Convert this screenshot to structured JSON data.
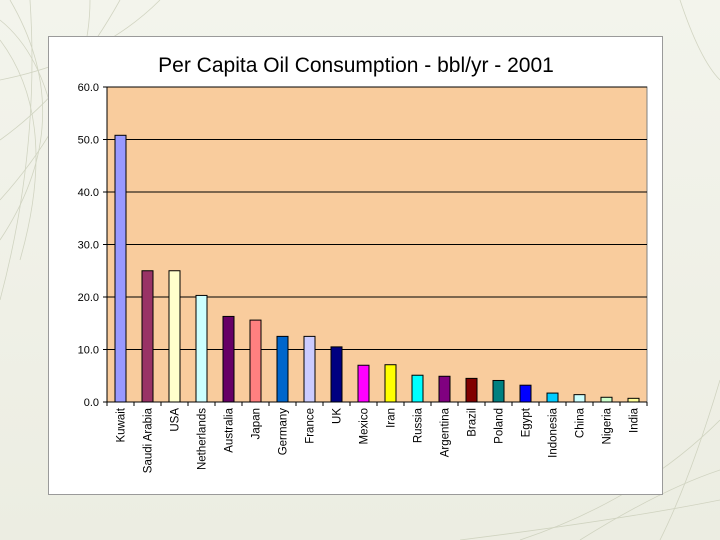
{
  "chart_data": {
    "type": "bar",
    "title": "Per Capita Oil Consumption - bbl/yr - 2001",
    "xlabel": "",
    "ylabel": "",
    "ylim": [
      0,
      60
    ],
    "yticks": [
      "0.0",
      "10.0",
      "20.0",
      "30.0",
      "40.0",
      "50.0",
      "60.0"
    ],
    "grid": true,
    "legend": "none",
    "plot_background": "#f9cc9d",
    "categories": [
      "Kuwait",
      "Saudi Arabia",
      "USA",
      "Netherlands",
      "Australia",
      "Japan",
      "Germany",
      "France",
      "UK",
      "Mexico",
      "Iran",
      "Russia",
      "Argentina",
      "Brazil",
      "Poland",
      "Egypt",
      "Indonesia",
      "China",
      "Nigeria",
      "India"
    ],
    "values": [
      50.8,
      25.0,
      25.0,
      20.3,
      16.3,
      15.6,
      12.5,
      12.5,
      10.5,
      7.0,
      7.1,
      5.1,
      4.9,
      4.5,
      4.1,
      3.2,
      1.7,
      1.4,
      0.9,
      0.7
    ],
    "colors": [
      "#9999ff",
      "#993366",
      "#ffffcc",
      "#ccffff",
      "#660066",
      "#ff8080",
      "#0066cc",
      "#ccccff",
      "#000080",
      "#ff00ff",
      "#ffff00",
      "#00ffff",
      "#800080",
      "#800000",
      "#008080",
      "#0000ff",
      "#00ccff",
      "#ccffff",
      "#ccffcc",
      "#ffff99"
    ]
  }
}
